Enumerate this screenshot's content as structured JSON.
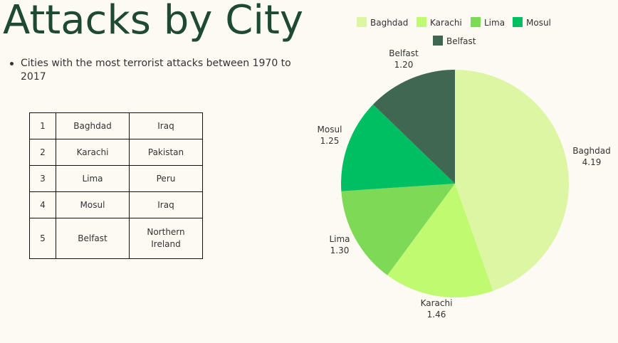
{
  "page": {
    "title": "Attacks by City",
    "bullet": "Cities with the most terrorist attacks between 1970 to 2017"
  },
  "table": {
    "rows": [
      {
        "rank": "1",
        "city": "Baghdad",
        "country": "Iraq"
      },
      {
        "rank": "2",
        "city": "Karachi",
        "country": "Pakistan"
      },
      {
        "rank": "3",
        "city": "Lima",
        "country": "Peru"
      },
      {
        "rank": "4",
        "city": "Mosul",
        "country": "Iraq"
      },
      {
        "rank": "5",
        "city": "Belfast",
        "country": "Northern Ireland"
      }
    ]
  },
  "chart_data": {
    "type": "pie",
    "categories": [
      "Baghdad",
      "Karachi",
      "Lima",
      "Mosul",
      "Belfast"
    ],
    "values": [
      4.19,
      1.46,
      1.3,
      1.25,
      1.2
    ],
    "value_labels": [
      "4.19",
      "1.46",
      "1.30",
      "1.25",
      "1.20"
    ],
    "colors": [
      "#ddf6a3",
      "#c0fa70",
      "#7ed957",
      "#00bf63",
      "#3f6751"
    ],
    "legend_position": "top"
  }
}
